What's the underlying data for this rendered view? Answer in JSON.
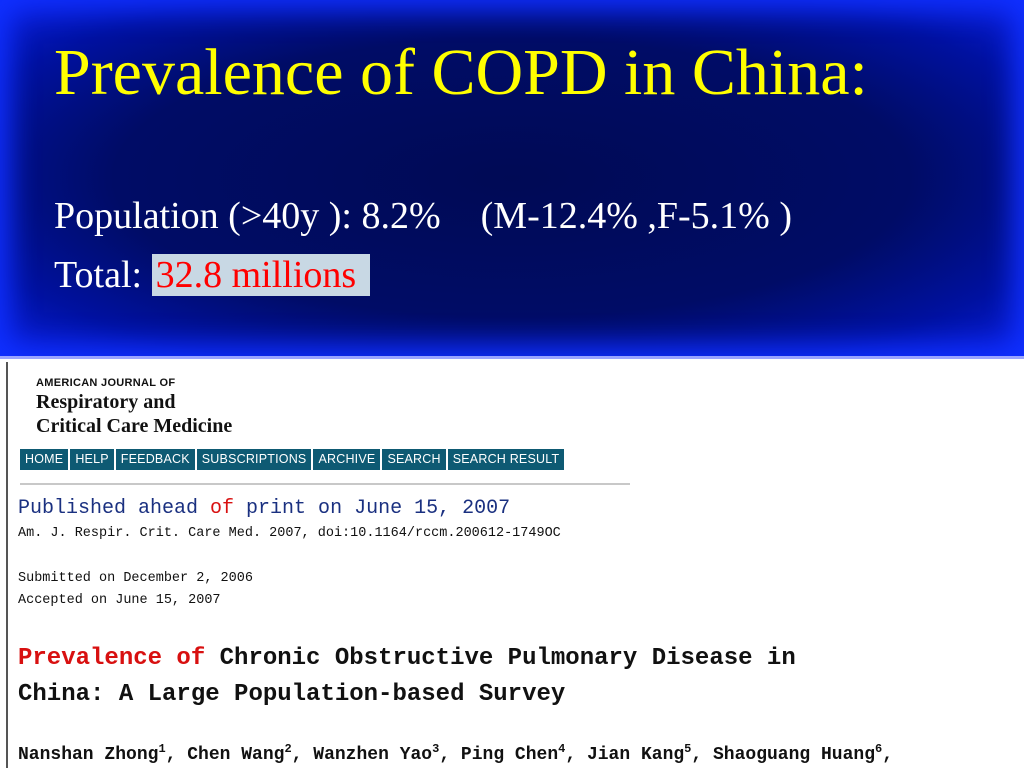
{
  "slide": {
    "title": "Prevalence of COPD in China:",
    "population_label": "Population (>40y ):  8.2%",
    "population_breakdown": "(M-12.4% ,F-5.1% )",
    "total_label": "Total: ",
    "total_value": "32.8 millions"
  },
  "journal": {
    "logo_small": "AMERICAN JOURNAL OF",
    "logo_line1": "Respiratory and",
    "logo_line2": "Critical Care Medicine",
    "nav": [
      "HOME",
      "HELP",
      "FEEDBACK",
      "SUBSCRIPTIONS",
      "ARCHIVE",
      "SEARCH",
      "SEARCH RESULT"
    ],
    "published_prefix": "Published ahead ",
    "published_of": "of",
    "published_suffix": " print on June 15, 2007",
    "reference": "Am. J. Respir. Crit. Care Med. 2007, doi:10.1164/rccm.200612-1749OC",
    "submitted": "Submitted on December 2, 2006",
    "accepted": "Accepted on June 15, 2007",
    "article_title_red": "Prevalence of",
    "article_title_rest": " Chronic Obstructive Pulmonary Disease in",
    "article_title_line2": "China: A Large Population-based Survey",
    "authors": [
      {
        "name": "Nanshan Zhong",
        "sup": "1"
      },
      {
        "name": "Chen Wang",
        "sup": "2"
      },
      {
        "name": "Wanzhen Yao",
        "sup": "3"
      },
      {
        "name": "Ping Chen",
        "sup": "4"
      },
      {
        "name": "Jian Kang",
        "sup": "5"
      },
      {
        "name": "Shaoguang Huang",
        "sup": "6"
      }
    ],
    "author_separator": ", "
  }
}
